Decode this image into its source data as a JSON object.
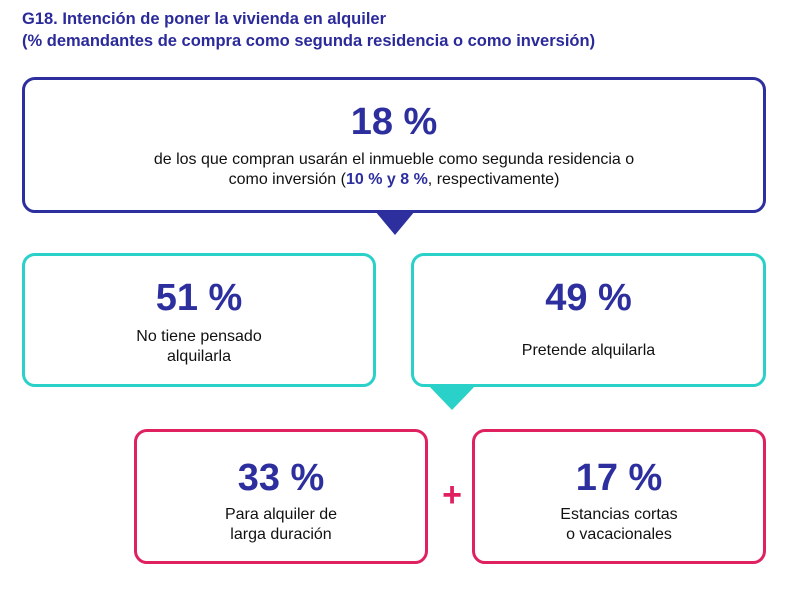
{
  "colors": {
    "title": "#2b2a9a",
    "navy": "#2d2f9e",
    "teal": "#2ad1c9",
    "pink": "#e0215f"
  },
  "title": {
    "line1": "G18. Intención de poner la vivienda en alquiler",
    "line2": "(% demandantes de compra como segunda residencia o como inversión)"
  },
  "top": {
    "value": "18 %",
    "desc_line1": "de los que compran usarán el inmueble como segunda residencia o",
    "desc_pre": "como inversión (",
    "desc_highlight": "10 % y 8 %",
    "desc_post": ", respectivamente)"
  },
  "left": {
    "value": "51 %",
    "line1": "No tiene pensado",
    "line2": "alquilarla"
  },
  "right": {
    "value": "49 %",
    "line1": "Pretende alquilarla"
  },
  "bottom_left": {
    "value": "33 %",
    "line1": "Para alquiler de",
    "line2": "larga duración"
  },
  "bottom_right": {
    "value": "17 %",
    "line1": "Estancias cortas",
    "line2": "o vacacionales"
  },
  "plus": "+"
}
